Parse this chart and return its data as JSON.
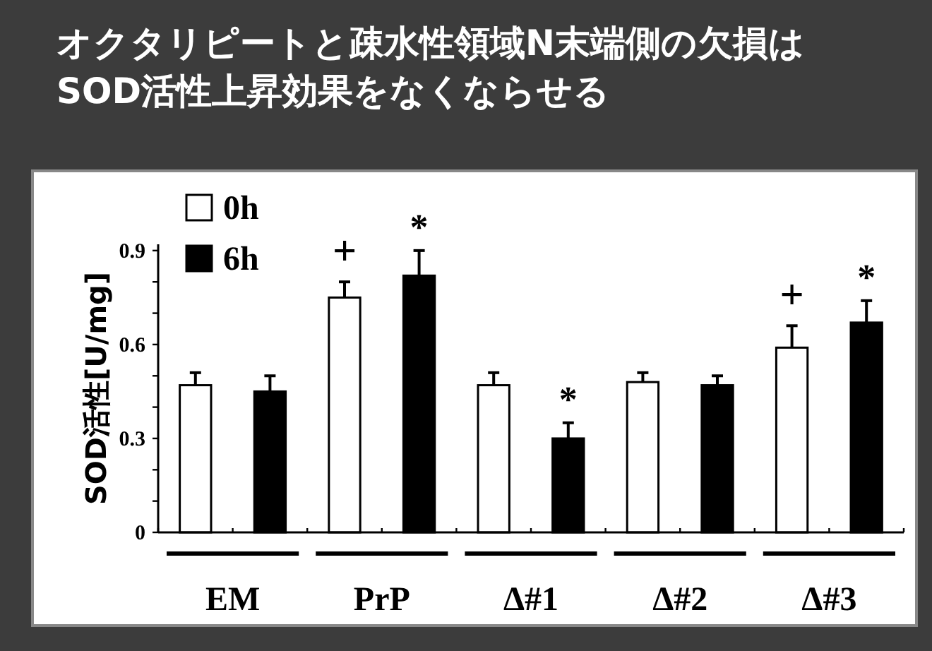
{
  "chart_data": {
    "type": "bar",
    "title": "オクタリピートと疎水性領域N末端側の欠損は\nSOD活性上昇効果をなくならせる",
    "ylabel": "SOD活性[U/mg]",
    "categories": [
      "EM",
      "PrP",
      "Δ#1",
      "Δ#2",
      "Δ#3"
    ],
    "series": [
      {
        "name": "0h",
        "color": "#ffffff",
        "values": [
          0.47,
          0.75,
          0.47,
          0.48,
          0.59
        ],
        "errors": [
          [
            0.47,
            0.51
          ],
          [
            0.75,
            0.8
          ],
          [
            0.47,
            0.51
          ],
          [
            0.48,
            0.51
          ],
          [
            0.59,
            0.66
          ]
        ]
      },
      {
        "name": "6h",
        "color": "#000000",
        "values": [
          0.45,
          0.82,
          0.3,
          0.47,
          0.67
        ],
        "errors": [
          [
            0.45,
            0.5
          ],
          [
            0.82,
            0.9
          ],
          [
            0.3,
            0.35
          ],
          [
            0.47,
            0.5
          ],
          [
            0.67,
            0.74
          ]
        ]
      }
    ],
    "ylim": [
      0,
      0.92
    ],
    "yticks": [
      0,
      {
        "value": 0.1,
        "label": null
      },
      {
        "value": 0.2,
        "label": null
      },
      0.3,
      {
        "value": 0.4,
        "label": null
      },
      {
        "value": 0.5,
        "label": null
      },
      0.6,
      {
        "value": 0.7,
        "label": null
      },
      {
        "value": 0.8,
        "label": null
      },
      0.9
    ],
    "annotations": [
      "+",
      "*",
      "*",
      "+",
      "*"
    ],
    "legend": "top left"
  }
}
